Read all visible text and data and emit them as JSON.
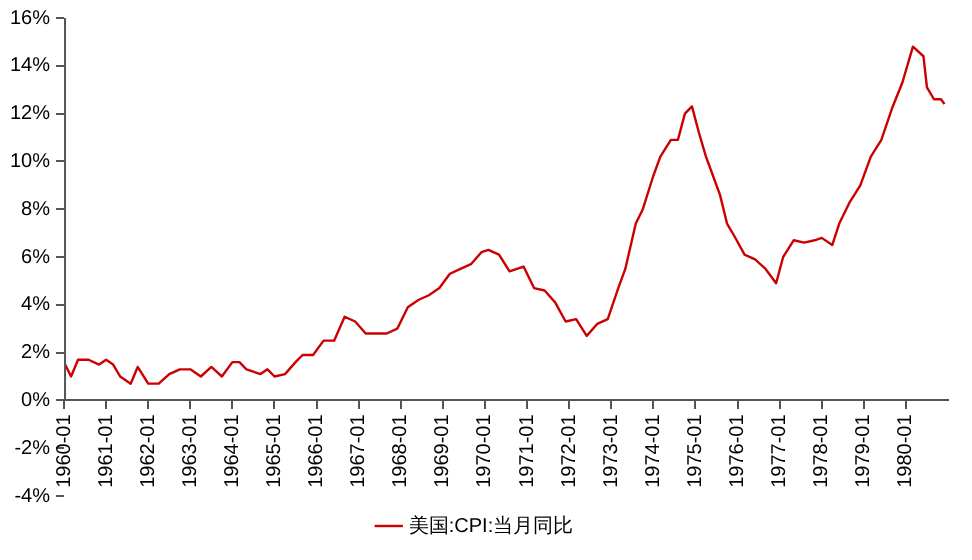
{
  "chart_data": {
    "type": "line",
    "legend": "bottom",
    "grid": false,
    "marker": "none",
    "line_style": "solid",
    "ylim": [
      -4,
      16
    ],
    "yticks": [
      {
        "value": -4,
        "label": "-4%"
      },
      {
        "value": -2,
        "label": "-2%"
      },
      {
        "value": 0,
        "label": "0%"
      },
      {
        "value": 2,
        "label": "2%"
      },
      {
        "value": 4,
        "label": "4%"
      },
      {
        "value": 6,
        "label": "6%"
      },
      {
        "value": 8,
        "label": "8%"
      },
      {
        "value": 10,
        "label": "10%"
      },
      {
        "value": 12,
        "label": "12%"
      },
      {
        "value": 14,
        "label": "14%"
      },
      {
        "value": 16,
        "label": "16%"
      }
    ],
    "xlim": [
      "1960-01",
      "1981-01"
    ],
    "xticks": [
      "1960-01",
      "1961-01",
      "1962-01",
      "1963-01",
      "1964-01",
      "1965-01",
      "1966-01",
      "1967-01",
      "1968-01",
      "1969-01",
      "1970-01",
      "1971-01",
      "1972-01",
      "1973-01",
      "1974-01",
      "1975-01",
      "1976-01",
      "1977-01",
      "1978-01",
      "1979-01",
      "1980-01"
    ],
    "x": [
      "1960-01",
      "1960-03",
      "1960-05",
      "1960-08",
      "1960-11",
      "1961-01",
      "1961-03",
      "1961-05",
      "1961-08",
      "1961-10",
      "1962-01",
      "1962-04",
      "1962-07",
      "1962-10",
      "1963-01",
      "1963-04",
      "1963-07",
      "1963-10",
      "1964-01",
      "1964-03",
      "1964-05",
      "1964-09",
      "1964-11",
      "1965-01",
      "1965-04",
      "1965-07",
      "1965-09",
      "1965-12",
      "1966-03",
      "1966-06",
      "1966-09",
      "1966-12",
      "1967-03",
      "1967-06",
      "1967-09",
      "1967-12",
      "1968-03",
      "1968-06",
      "1968-09",
      "1968-12",
      "1969-03",
      "1969-06",
      "1969-09",
      "1969-12",
      "1970-02",
      "1970-05",
      "1970-08",
      "1970-12",
      "1971-03",
      "1971-06",
      "1971-09",
      "1971-12",
      "1972-03",
      "1972-06",
      "1972-09",
      "1972-12",
      "1973-03",
      "1973-05",
      "1973-08",
      "1973-10",
      "1974-01",
      "1974-03",
      "1974-06",
      "1974-08",
      "1974-10",
      "1974-12",
      "1975-02",
      "1975-04",
      "1975-06",
      "1975-08",
      "1975-10",
      "1975-12",
      "1976-03",
      "1976-06",
      "1976-09",
      "1976-12",
      "1977-02",
      "1977-05",
      "1977-08",
      "1977-11",
      "1978-01",
      "1978-04",
      "1978-06",
      "1978-09",
      "1978-12",
      "1979-03",
      "1979-06",
      "1979-09",
      "1979-12",
      "1980-03",
      "1980-06",
      "1980-07",
      "1980-09",
      "1980-11",
      "1980-12"
    ],
    "series": [
      {
        "name": "美国:CPI:当月同比",
        "color": "#cc0000",
        "values": [
          1.6,
          1.0,
          1.7,
          1.7,
          1.5,
          1.7,
          1.5,
          1.0,
          0.7,
          1.4,
          0.7,
          0.7,
          1.1,
          1.3,
          1.3,
          1.0,
          1.4,
          1.0,
          1.6,
          1.6,
          1.3,
          1.1,
          1.3,
          1.0,
          1.1,
          1.6,
          1.9,
          1.9,
          2.5,
          2.5,
          3.5,
          3.3,
          2.8,
          2.8,
          2.8,
          3.0,
          3.9,
          4.2,
          4.4,
          4.7,
          5.3,
          5.5,
          5.7,
          6.2,
          6.3,
          6.1,
          5.4,
          5.6,
          4.7,
          4.6,
          4.1,
          3.3,
          3.4,
          2.7,
          3.2,
          3.4,
          4.7,
          5.5,
          7.4,
          8.0,
          9.4,
          10.2,
          10.9,
          10.9,
          12.0,
          12.3,
          11.2,
          10.2,
          9.4,
          8.6,
          7.4,
          6.9,
          6.1,
          5.9,
          5.5,
          4.9,
          6.0,
          6.7,
          6.6,
          6.7,
          6.8,
          6.5,
          7.4,
          8.3,
          9.0,
          10.2,
          10.9,
          12.2,
          13.3,
          14.8,
          14.4,
          13.1,
          12.6,
          12.6,
          12.4
        ]
      }
    ]
  }
}
